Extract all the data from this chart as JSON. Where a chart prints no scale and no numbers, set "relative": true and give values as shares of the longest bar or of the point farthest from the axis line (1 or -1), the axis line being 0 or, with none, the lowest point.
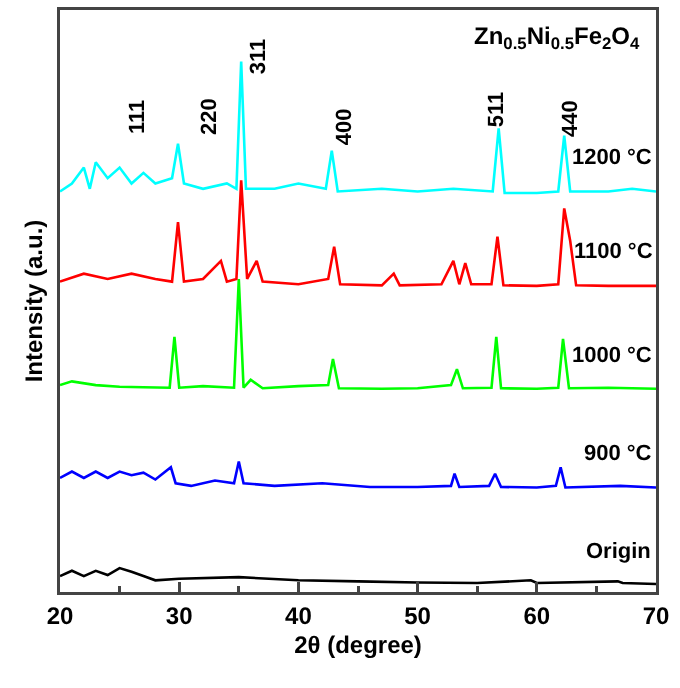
{
  "chart_data": {
    "type": "line",
    "relative": true,
    "xlabel": "2θ (degree)",
    "ylabel": "Intensity (a.u.)",
    "xlim": [
      20,
      70
    ],
    "xticks": [
      20,
      30,
      40,
      50,
      60,
      70
    ],
    "legend": false,
    "grid": false,
    "marker": "none",
    "line_style": "solid",
    "annotations": [
      "Zn$_{0.5}$Ni$_{0.5}$Fe$_{2}$O$_{4}$",
      "111",
      "220",
      "311",
      "400",
      "511",
      "440"
    ],
    "series": [
      {
        "name": "Origin",
        "color": "#000000",
        "x": [
          20,
          21,
          22,
          23,
          24,
          25,
          26,
          27,
          28,
          30,
          35,
          40,
          45,
          50,
          55,
          59.5,
          60,
          66.8,
          67.2,
          70
        ],
        "values": [
          0.03,
          0.04,
          0.03,
          0.04,
          0.032,
          0.045,
          0.038,
          0.03,
          0.022,
          0.025,
          0.028,
          0.022,
          0.02,
          0.018,
          0.017,
          0.022,
          0.017,
          0.02,
          0.017,
          0.015
        ]
      },
      {
        "name": "900 °C",
        "color": "#0000ff",
        "x": [
          20,
          21,
          22,
          23,
          24,
          25,
          26,
          27,
          28,
          29.3,
          29.7,
          31,
          33,
          34.6,
          35,
          35.4,
          38,
          42,
          46,
          50,
          52.8,
          53.1,
          53.5,
          56,
          56.5,
          57,
          60,
          61.6,
          62,
          62.4,
          67,
          70
        ],
        "values": [
          0.215,
          0.227,
          0.215,
          0.227,
          0.215,
          0.227,
          0.22,
          0.225,
          0.212,
          0.235,
          0.205,
          0.2,
          0.21,
          0.205,
          0.246,
          0.205,
          0.2,
          0.205,
          0.198,
          0.198,
          0.2,
          0.223,
          0.198,
          0.2,
          0.223,
          0.198,
          0.197,
          0.2,
          0.235,
          0.197,
          0.2,
          0.197
        ]
      },
      {
        "name": "1000 °C",
        "color": "#00ff00",
        "x": [
          20,
          21,
          23,
          25,
          27,
          29.2,
          29.6,
          30,
          32,
          34.6,
          35,
          35.4,
          36,
          37,
          40,
          42.5,
          42.9,
          43.4,
          47,
          50,
          52.8,
          53.3,
          53.8,
          56.2,
          56.6,
          57,
          60,
          61.8,
          62.2,
          62.7,
          66,
          70
        ],
        "values": [
          0.39,
          0.397,
          0.39,
          0.387,
          0.386,
          0.385,
          0.481,
          0.385,
          0.388,
          0.385,
          0.59,
          0.385,
          0.4,
          0.384,
          0.388,
          0.39,
          0.439,
          0.384,
          0.383,
          0.384,
          0.39,
          0.42,
          0.384,
          0.385,
          0.481,
          0.384,
          0.383,
          0.385,
          0.477,
          0.384,
          0.385,
          0.383
        ]
      },
      {
        "name": "1100 °C",
        "color": "#ff0000",
        "x": [
          20,
          22,
          24,
          26,
          28,
          29.4,
          29.9,
          30.4,
          32,
          33.5,
          34,
          34.8,
          35.2,
          35.7,
          36.5,
          37,
          40,
          42.5,
          43,
          43.5,
          47,
          48,
          48.5,
          52,
          53,
          53.5,
          54,
          54.5,
          56.2,
          56.7,
          57.2,
          60,
          61.8,
          62.3,
          62.8,
          63.3,
          66,
          70
        ],
        "values": [
          0.585,
          0.6,
          0.59,
          0.6,
          0.59,
          0.585,
          0.697,
          0.585,
          0.59,
          0.624,
          0.585,
          0.59,
          0.776,
          0.59,
          0.624,
          0.585,
          0.58,
          0.59,
          0.651,
          0.58,
          0.578,
          0.6,
          0.578,
          0.58,
          0.624,
          0.58,
          0.62,
          0.58,
          0.58,
          0.67,
          0.578,
          0.577,
          0.58,
          0.723,
          0.662,
          0.578,
          0.577,
          0.577
        ]
      },
      {
        "name": "1200 °C",
        "color": "#00ffff",
        "x": [
          20,
          21,
          22,
          22.5,
          23,
          24,
          25,
          26,
          27,
          28,
          29.4,
          29.9,
          30.4,
          32,
          34,
          34.8,
          35.2,
          35.6,
          38,
          40,
          42.3,
          42.8,
          43.3,
          47,
          50,
          53,
          56.3,
          56.8,
          57.3,
          60,
          61.8,
          62.3,
          62.8,
          66,
          68,
          70
        ],
        "values": [
          0.755,
          0.77,
          0.8,
          0.76,
          0.81,
          0.78,
          0.8,
          0.77,
          0.79,
          0.77,
          0.78,
          0.845,
          0.77,
          0.76,
          0.77,
          0.76,
          1.0,
          0.76,
          0.76,
          0.77,
          0.76,
          0.832,
          0.755,
          0.76,
          0.755,
          0.76,
          0.755,
          0.874,
          0.752,
          0.752,
          0.755,
          0.86,
          0.755,
          0.755,
          0.76,
          0.755
        ]
      }
    ]
  }
}
